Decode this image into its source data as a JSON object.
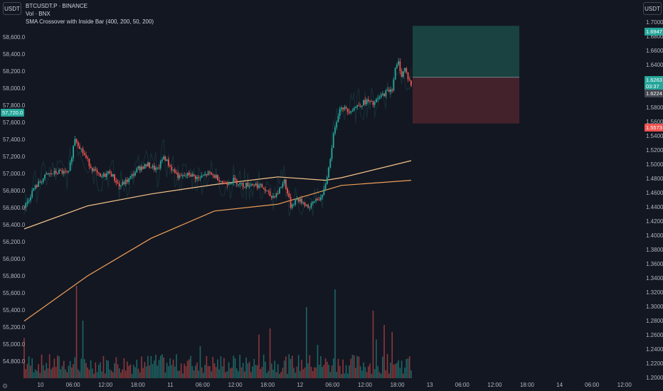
{
  "header": {
    "left_unit": "USDT",
    "right_unit": "USDT",
    "legend": {
      "symbol": "BTCUSDT.P · BINANCE",
      "volume": "Vol · BNX",
      "indicator": "SMA Crossover with Inside Bar (400, 200, 50, 200)"
    }
  },
  "settings_icon": "gear-icon",
  "colors": {
    "background": "#131722",
    "up": "#26a69a",
    "down": "#ef5350",
    "sma_long": "#f0a058",
    "sma_short": "#f7c58a",
    "profit_zone": "#1b4a45",
    "loss_zone": "#4a232d"
  },
  "badges": {
    "left_price": "57,720.0",
    "target": "1.6947",
    "current": "1.6263",
    "countdown": "03:37",
    "entry": "1.6224",
    "stop": "1.5573"
  },
  "chart_data": {
    "type": "candlestick",
    "left_axis": {
      "ylim": [
        54700,
        58700
      ],
      "ticks": [
        "54,800.0",
        "55,000.0",
        "55,200.0",
        "55,400.0",
        "55,600.0",
        "55,800.0",
        "56,000.0",
        "56,200.0",
        "56,400.0",
        "56,600.0",
        "56,800.0",
        "57,000.0",
        "57,200.0",
        "57,400.0",
        "57,600.0",
        "57,800.0",
        "58,000.0",
        "58,200.0",
        "58,400.0",
        "58,600.0"
      ]
    },
    "right_axis": {
      "ylim": [
        1.2,
        1.72
      ],
      "ticks": [
        "1.2000",
        "1.2200",
        "1.2400",
        "1.2600",
        "1.2800",
        "1.3000",
        "1.3200",
        "1.3400",
        "1.3600",
        "1.3800",
        "1.4000",
        "1.4200",
        "1.4400",
        "1.4600",
        "1.4800",
        "1.5000",
        "1.5200",
        "1.5400",
        "1.5600",
        "1.5800",
        "1.6000",
        "1.6200",
        "1.6400",
        "1.6600",
        "1.6800",
        "1.7000"
      ]
    },
    "x_ticks": [
      "10",
      "06:00",
      "12:00",
      "18:00",
      "11",
      "06:00",
      "12:00",
      "18:00",
      "12",
      "06:00",
      "12:00",
      "18:00",
      "13",
      "06:00",
      "12:00",
      "18:00",
      "14",
      "06:00",
      "12:00"
    ],
    "price_path": [
      [
        0,
        56600
      ],
      [
        3,
        56820
      ],
      [
        7,
        56980
      ],
      [
        11,
        57020
      ],
      [
        14,
        57000
      ],
      [
        16,
        57420
      ],
      [
        18,
        57280
      ],
      [
        21,
        57080
      ],
      [
        24,
        56950
      ],
      [
        27,
        57020
      ],
      [
        30,
        56850
      ],
      [
        33,
        56930
      ],
      [
        36,
        57060
      ],
      [
        39,
        57100
      ],
      [
        42,
        57040
      ],
      [
        44,
        57200
      ],
      [
        46,
        57080
      ],
      [
        49,
        56950
      ],
      [
        52,
        56990
      ],
      [
        55,
        56940
      ],
      [
        58,
        57000
      ],
      [
        61,
        56950
      ],
      [
        63,
        56880
      ],
      [
        66,
        56920
      ],
      [
        69,
        56860
      ],
      [
        72,
        56880
      ],
      [
        75,
        56840
      ],
      [
        78,
        56720
      ],
      [
        80,
        56780
      ],
      [
        82,
        56920
      ],
      [
        84,
        56620
      ],
      [
        86,
        56700
      ],
      [
        88,
        56660
      ],
      [
        90,
        56600
      ],
      [
        92,
        56700
      ],
      [
        94,
        56720
      ],
      [
        95,
        56880
      ],
      [
        96,
        57060
      ],
      [
        97,
        57320
      ],
      [
        98,
        57560
      ],
      [
        99,
        57700
      ],
      [
        100,
        57790
      ],
      [
        102,
        57730
      ],
      [
        104,
        57770
      ],
      [
        106,
        57810
      ],
      [
        108,
        57850
      ],
      [
        110,
        57810
      ],
      [
        112,
        57890
      ],
      [
        114,
        57950
      ],
      [
        116,
        58000
      ],
      [
        117,
        58220
      ],
      [
        118,
        58300
      ],
      [
        119,
        58150
      ],
      [
        120,
        58230
      ],
      [
        121,
        58120
      ],
      [
        122,
        58040
      ]
    ],
    "volume_max": 100,
    "sma_long": [
      [
        0,
        55270
      ],
      [
        20,
        55800
      ],
      [
        40,
        56240
      ],
      [
        60,
        56560
      ],
      [
        80,
        56640
      ],
      [
        100,
        56860
      ],
      [
        122,
        56920
      ]
    ],
    "sma_short": [
      [
        0,
        56350
      ],
      [
        20,
        56620
      ],
      [
        40,
        56760
      ],
      [
        60,
        56870
      ],
      [
        80,
        56960
      ],
      [
        95,
        56920
      ],
      [
        100,
        56950
      ],
      [
        122,
        57150
      ]
    ],
    "position": {
      "target": 1.6947,
      "entry": 1.6224,
      "stop": 1.5573
    }
  }
}
